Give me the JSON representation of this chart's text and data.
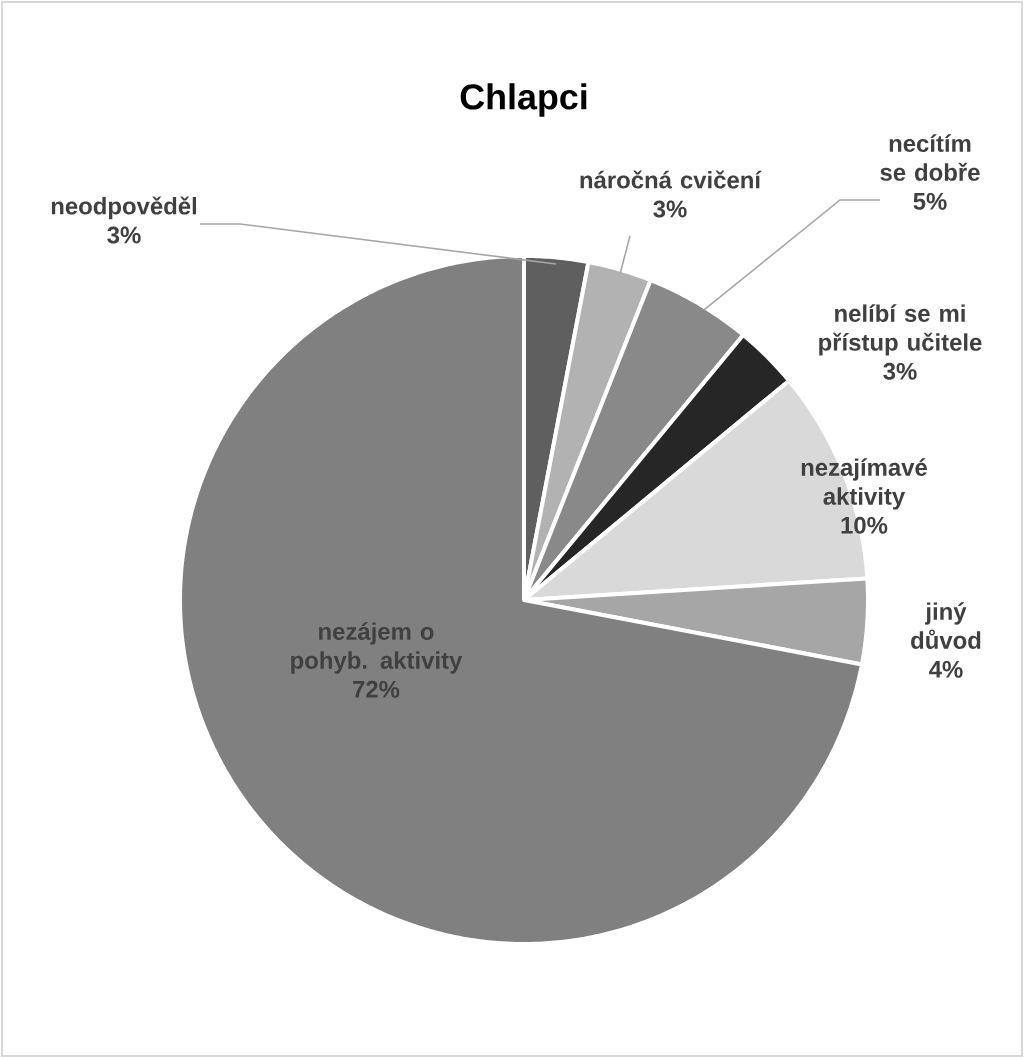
{
  "chart_data": {
    "type": "pie",
    "title": "Chlapci",
    "categories": [
      "neodpověděl",
      "náročná cvičení",
      "necítím se dobře",
      "nelíbí se mi přístup učitele",
      "nezajímavé aktivity",
      "jiný důvod",
      "nezájem o pohyb. aktivity"
    ],
    "values": [
      3,
      3,
      5,
      3,
      10,
      4,
      72
    ],
    "value_labels": [
      "3%",
      "3%",
      "5%",
      "3%",
      "10%",
      "4%",
      "72%"
    ],
    "colors": [
      "#5f5f5f",
      "#b2b2b2",
      "#898989",
      "#262626",
      "#d9d9d9",
      "#a6a6a6",
      "#808080"
    ]
  }
}
